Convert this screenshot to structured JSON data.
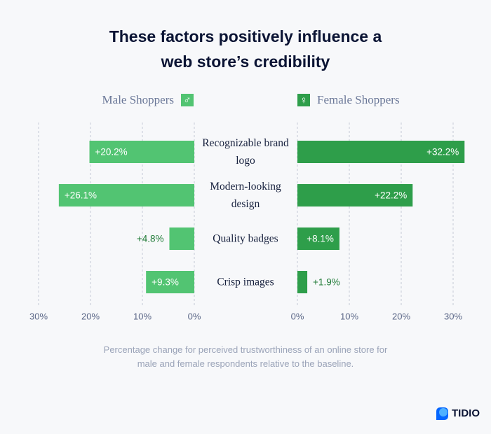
{
  "chart_data": {
    "type": "butterfly-bar",
    "title": "These factors positively influence a web store’s credibility",
    "categories": [
      "Recognizable brand logo",
      "Modern-looking design",
      "Quality badges",
      "Crisp images"
    ],
    "series": [
      {
        "name": "Male Shoppers",
        "symbol": "♂",
        "color": "#52c472",
        "side": "left",
        "values": [
          20.2,
          26.1,
          4.8,
          9.3
        ],
        "value_labels": [
          "+20.2%",
          "+26.1%",
          "+4.8%",
          "+9.3%"
        ]
      },
      {
        "name": "Female Shoppers",
        "symbol": "♀",
        "color": "#2e9e4a",
        "side": "right",
        "values": [
          32.2,
          22.2,
          8.1,
          1.9
        ],
        "value_labels": [
          "+32.2%",
          "+22.2%",
          "+8.1%",
          "+1.9%"
        ]
      }
    ],
    "xlim": [
      0,
      30
    ],
    "xticks": [
      {
        "value": 0,
        "label": "0%"
      },
      {
        "value": 10,
        "label": "10%"
      },
      {
        "value": 20,
        "label": "20%"
      },
      {
        "value": 30,
        "label": "30%"
      }
    ],
    "grid": true,
    "note": "Percentage change for perceived trustworthiness of an online store for male and female respondents relative to the baseline.",
    "brand": "TIDIO"
  }
}
